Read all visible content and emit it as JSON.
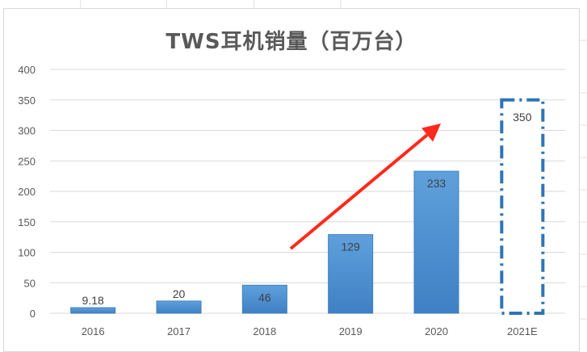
{
  "chart_data": {
    "type": "bar",
    "title": "TWS耳机销量（百万台）",
    "categories": [
      "2016",
      "2017",
      "2018",
      "2019",
      "2020",
      "2021E"
    ],
    "values": [
      9.18,
      20,
      46,
      129,
      233,
      350
    ],
    "data_labels": [
      "9.18",
      "20",
      "46",
      "129",
      "233",
      "350"
    ],
    "estimated_categories": [
      "2021E"
    ],
    "ylim": [
      0,
      400
    ],
    "yticks": [
      0,
      50,
      100,
      150,
      200,
      250,
      300,
      350,
      400
    ],
    "grid": true,
    "legend": "none",
    "annotations": [
      "red upward trend arrow from 2018 toward 2021E"
    ],
    "colors": {
      "bar": "#5b9bd5",
      "bar_dark": "#3f7fbf",
      "estimate_outline": "#2e75b6",
      "arrow": "#ff2a1a",
      "grid": "#d9d9d9",
      "text": "#595959"
    }
  }
}
